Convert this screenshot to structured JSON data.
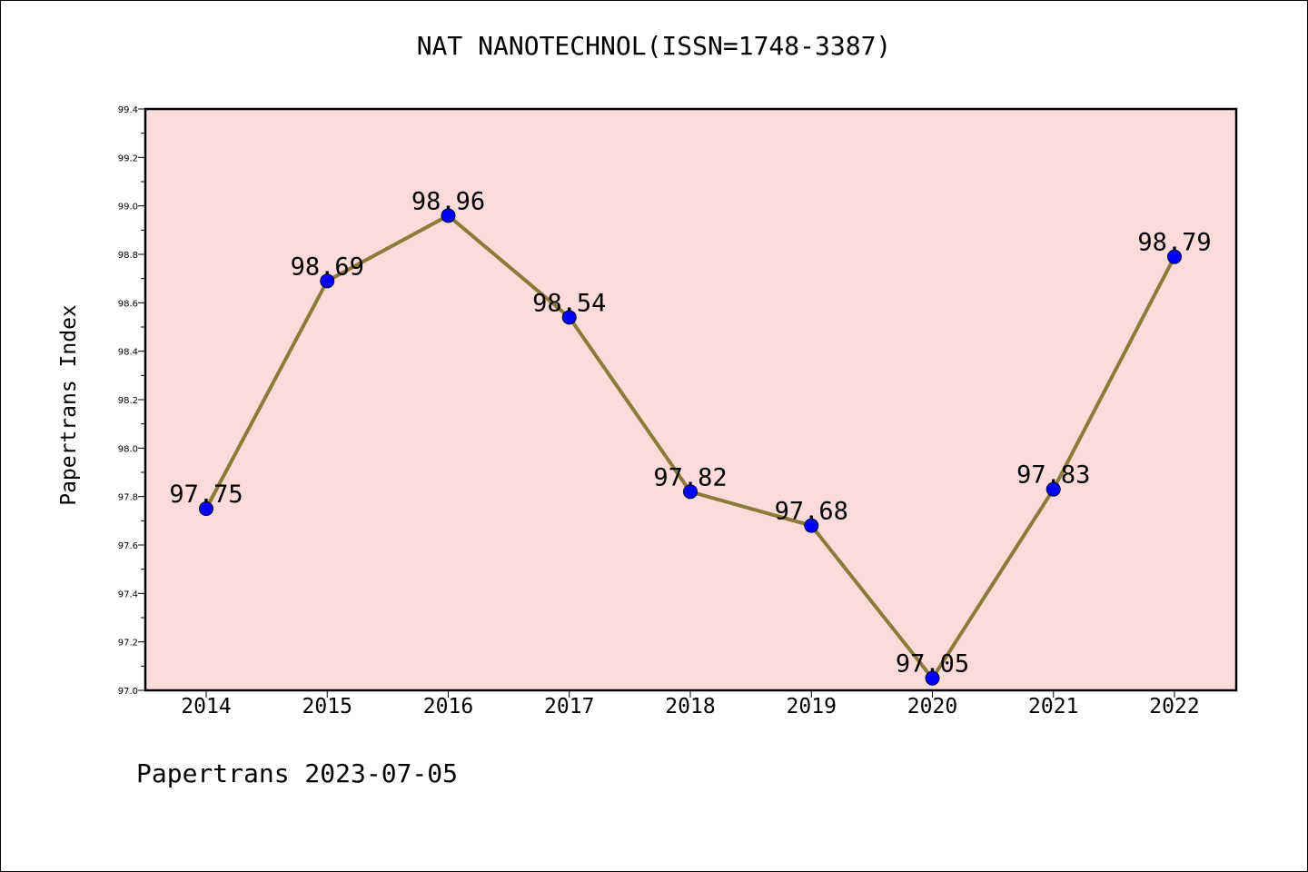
{
  "title": "NAT NANOTECHNOL(ISSN=1748-3387)",
  "footer": "Papertrans 2023-07-05",
  "chart_data": {
    "type": "line",
    "title": "NAT NANOTECHNOL(ISSN=1748-3387)",
    "xlabel": "",
    "ylabel": "Papertrans Index",
    "categories": [
      "2014",
      "2015",
      "2016",
      "2017",
      "2018",
      "2019",
      "2020",
      "2021",
      "2022"
    ],
    "series": [
      {
        "values": [
          97.75,
          98.69,
          98.96,
          98.54,
          97.82,
          97.68,
          97.05,
          97.83,
          98.79
        ]
      }
    ],
    "data_labels": [
      "97.75",
      "98.69",
      "98.96",
      "98.54",
      "97.82",
      "97.68",
      "97.05",
      "97.83",
      "98.79"
    ],
    "ylim": [
      97.0,
      99.4
    ],
    "yticks": [
      "97.0",
      "97.2",
      "97.4",
      "97.6",
      "97.8",
      "98.0",
      "98.2",
      "98.4",
      "98.6",
      "98.8",
      "99.0",
      "99.2",
      "99.4"
    ],
    "grid": false,
    "legend": "none",
    "colors": {
      "plot_background": "#fddbd8",
      "line": "#8b7a3a",
      "marker": "#0000ff"
    }
  }
}
